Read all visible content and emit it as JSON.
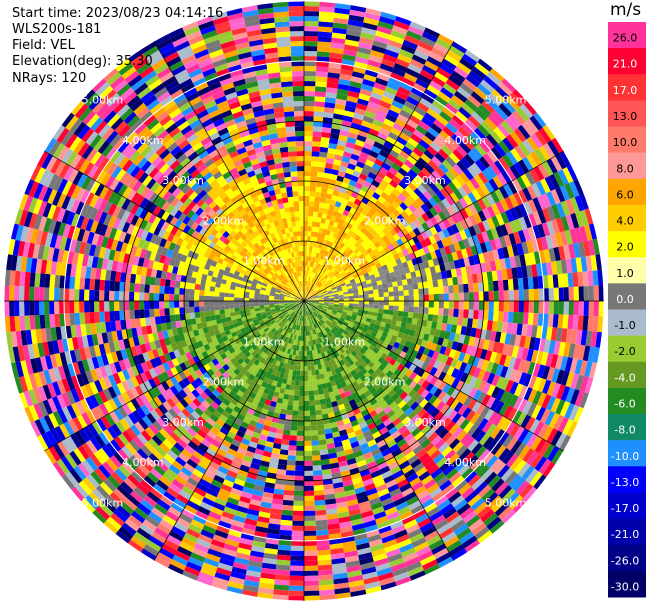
{
  "header": {
    "start_time": "Start time: 2023/08/23 04:14:16",
    "instrument": "WLS200s-181",
    "field": "Field: VEL",
    "elevation": "Elevation(deg): 35.30",
    "nrays": "NRays: 120"
  },
  "chart_data": {
    "type": "heatmap",
    "projection": "polar PPI",
    "nrays": 120,
    "ring_labels": [
      "1.00km",
      "2.00km",
      "3.00km",
      "4.00km",
      "5.00km"
    ],
    "colorbar": {
      "unit": "m/s",
      "ticks": [
        "26.0",
        "21.0",
        "17.0",
        "13.0",
        "10.0",
        "8.0",
        "6.0",
        "4.0",
        "2.0",
        "1.0",
        "0.0",
        "-1.0",
        "-2.0",
        "-4.0",
        "-6.0",
        "-8.0",
        "-10.0",
        "-13.0",
        "-17.0",
        "-21.0",
        "-26.0",
        "-30.0"
      ],
      "colors": [
        "#ff3399",
        "#ff0033",
        "#ff3333",
        "#ff5555",
        "#ff7a6a",
        "#ff9999",
        "#ffa500",
        "#ffcc00",
        "#ffff00",
        "#ffffaa",
        "#777777",
        "#aabbcc",
        "#99cc33",
        "#669922",
        "#228b22",
        "#118866",
        "#1e90ff",
        "#0000ff",
        "#0000cc",
        "#0000aa",
        "#000088",
        "#000066"
      ]
    }
  }
}
